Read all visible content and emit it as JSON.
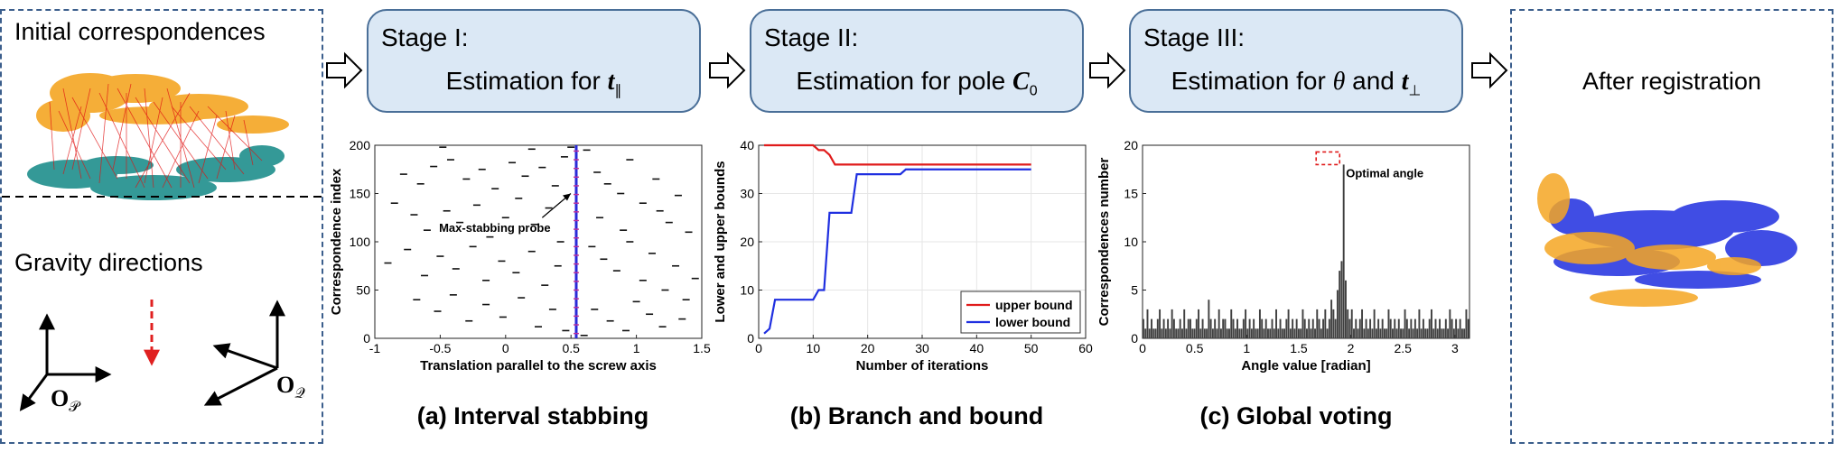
{
  "left_panel": {
    "initial_label": "Initial correspondences",
    "gravity_label": "Gravity directions",
    "frame_p_label": "O",
    "frame_p_sub": "𝒫",
    "frame_q_label": "O",
    "frame_q_sub": "𝒬"
  },
  "stages": [
    {
      "title": "Stage I:",
      "body_prefix": "Estimation for ",
      "symbol": "t",
      "symbol_sub": "∥",
      "body_mid": "",
      "symbol2": "",
      "symbol2_sub": ""
    },
    {
      "title": "Stage II:",
      "body_prefix": "Estimation for pole ",
      "symbol": "C",
      "symbol_sub": "0",
      "body_mid": "",
      "symbol2": "",
      "symbol2_sub": ""
    },
    {
      "title": "Stage III:",
      "body_prefix": "Estimation for ",
      "symbol": "θ",
      "symbol_sub": "",
      "body_mid": " and ",
      "symbol2": "t",
      "symbol2_sub": "⊥"
    }
  ],
  "right_panel": {
    "label": "After registration"
  },
  "captions": [
    "(a) Interval stabbing",
    "(b) Branch and bound",
    "(c) Global voting"
  ],
  "colors": {
    "panel_border": "#3b5e8c",
    "stage_fill": "#dbe8f5",
    "upper": "#e01b1b",
    "lower": "#1f2fe0",
    "probe": "#2a2ad8",
    "bars": "#404040",
    "gravity_arrow": "#e02020"
  },
  "chart_data": [
    {
      "type": "scatter",
      "xlabel": "Translation parallel to the screw axis",
      "ylabel": "Correspondence index",
      "xlim": [
        -1,
        1.5
      ],
      "ylim": [
        0,
        200
      ],
      "xticks": [
        "-1",
        "-0.5",
        "0",
        "0.5",
        "1",
        "1.5"
      ],
      "yticks": [
        "0",
        "50",
        "100",
        "150",
        "200"
      ],
      "annotation": "Max-stabbing probe",
      "probe_x": 0.54,
      "intervals": [
        [
          -0.78,
          170
        ],
        [
          -0.65,
          160
        ],
        [
          -0.55,
          178
        ],
        [
          -0.42,
          185
        ],
        [
          -0.3,
          165
        ],
        [
          -0.18,
          175
        ],
        [
          -0.08,
          155
        ],
        [
          0.05,
          182
        ],
        [
          0.15,
          168
        ],
        [
          0.28,
          177
        ],
        [
          0.38,
          158
        ],
        [
          0.45,
          188
        ],
        [
          -0.85,
          140
        ],
        [
          -0.7,
          128
        ],
        [
          -0.6,
          112
        ],
        [
          -0.45,
          132
        ],
        [
          -0.35,
          120
        ],
        [
          -0.22,
          138
        ],
        [
          -0.12,
          105
        ],
        [
          0.0,
          125
        ],
        [
          0.1,
          145
        ],
        [
          0.22,
          118
        ],
        [
          0.33,
          135
        ],
        [
          0.42,
          100
        ],
        [
          -0.9,
          78
        ],
        [
          -0.75,
          92
        ],
        [
          -0.62,
          65
        ],
        [
          -0.5,
          85
        ],
        [
          -0.38,
          72
        ],
        [
          -0.25,
          95
        ],
        [
          -0.15,
          60
        ],
        [
          -0.03,
          80
        ],
        [
          0.08,
          68
        ],
        [
          0.2,
          90
        ],
        [
          0.3,
          55
        ],
        [
          0.4,
          75
        ],
        [
          -0.68,
          40
        ],
        [
          -0.52,
          28
        ],
        [
          -0.4,
          45
        ],
        [
          -0.28,
          18
        ],
        [
          -0.15,
          35
        ],
        [
          -0.02,
          22
        ],
        [
          0.12,
          42
        ],
        [
          0.25,
          12
        ],
        [
          0.36,
          30
        ],
        [
          0.46,
          8
        ],
        [
          0.62,
          195
        ],
        [
          0.7,
          172
        ],
        [
          0.78,
          160
        ],
        [
          0.88,
          150
        ],
        [
          0.95,
          185
        ],
        [
          1.05,
          140
        ],
        [
          1.15,
          165
        ],
        [
          1.25,
          120
        ],
        [
          1.32,
          148
        ],
        [
          1.4,
          110
        ],
        [
          0.66,
          95
        ],
        [
          0.75,
          82
        ],
        [
          0.85,
          70
        ],
        [
          0.95,
          100
        ],
        [
          1.05,
          60
        ],
        [
          1.12,
          88
        ],
        [
          1.22,
          50
        ],
        [
          1.3,
          75
        ],
        [
          1.38,
          40
        ],
        [
          1.45,
          62
        ],
        [
          0.68,
          30
        ],
        [
          0.8,
          18
        ],
        [
          0.92,
          8
        ],
        [
          1.0,
          38
        ],
        [
          1.1,
          25
        ],
        [
          1.2,
          12
        ],
        [
          1.35,
          20
        ],
        [
          0.72,
          125
        ],
        [
          0.9,
          112
        ],
        [
          1.18,
          132
        ],
        [
          0.6,
          3
        ],
        [
          0.5,
          198
        ],
        [
          -0.48,
          198
        ],
        [
          0.2,
          196
        ]
      ]
    },
    {
      "type": "line",
      "xlabel": "Number of iterations",
      "ylabel": "Lower and upper bounds",
      "xlim": [
        0,
        60
      ],
      "ylim": [
        0,
        40
      ],
      "xticks": [
        "0",
        "10",
        "20",
        "30",
        "40",
        "50",
        "60"
      ],
      "yticks": [
        "0",
        "10",
        "20",
        "30",
        "40"
      ],
      "series": [
        {
          "name": "upper bound",
          "x": [
            1,
            10,
            11,
            12,
            13,
            14,
            20,
            30,
            40,
            50
          ],
          "y": [
            40,
            40,
            39,
            39,
            38,
            36,
            36,
            36,
            36,
            36
          ]
        },
        {
          "name": "lower bound",
          "x": [
            1,
            2,
            3,
            10,
            11,
            12,
            13,
            14,
            17,
            18,
            26,
            27,
            50
          ],
          "y": [
            1,
            2,
            8,
            8,
            10,
            10,
            26,
            26,
            26,
            34,
            34,
            35,
            35
          ]
        }
      ]
    },
    {
      "type": "bar",
      "xlabel": "Angle value [radian]",
      "ylabel": "Correspondences number",
      "xlim": [
        0,
        3.14
      ],
      "ylim": [
        0,
        20
      ],
      "xticks": [
        "0",
        "0.5",
        "1",
        "1.5",
        "2",
        "2.5",
        "3"
      ],
      "yticks": [
        "0",
        "5",
        "10",
        "15",
        "20"
      ],
      "annotation": "Optimal angle",
      "peak_x": 1.78,
      "peak_y": 18,
      "values": [
        2,
        1,
        3,
        1,
        2,
        1,
        1,
        2,
        3,
        1,
        2,
        1,
        2,
        1,
        3,
        2,
        1,
        1,
        2,
        1,
        3,
        1,
        2,
        2,
        1,
        1,
        2,
        3,
        1,
        2,
        1,
        1,
        4,
        2,
        1,
        2,
        1,
        3,
        1,
        2,
        2,
        1,
        1,
        3,
        2,
        1,
        2,
        1,
        1,
        2,
        3,
        1,
        2,
        1,
        2,
        1,
        1,
        3,
        2,
        1,
        2,
        1,
        1,
        2,
        1,
        3,
        1,
        2,
        1,
        1,
        2,
        3,
        1,
        2,
        1,
        2,
        1,
        1,
        3,
        2,
        1,
        2,
        1,
        2,
        1,
        3,
        2,
        1,
        2,
        3,
        1,
        2,
        4,
        3,
        2,
        5,
        7,
        8,
        18,
        6,
        3,
        2,
        3,
        1,
        2,
        1,
        2,
        3,
        1,
        2,
        1,
        2,
        1,
        3,
        1,
        2,
        1,
        2,
        1,
        1,
        3,
        2,
        1,
        2,
        1,
        2,
        1,
        1,
        3,
        2,
        1,
        2,
        1,
        2,
        1,
        3,
        1,
        2,
        1,
        1,
        2,
        3,
        1,
        2,
        1,
        2,
        1,
        1,
        2,
        1,
        3,
        2,
        1,
        2,
        1,
        2,
        1,
        1,
        3,
        2
      ]
    }
  ]
}
